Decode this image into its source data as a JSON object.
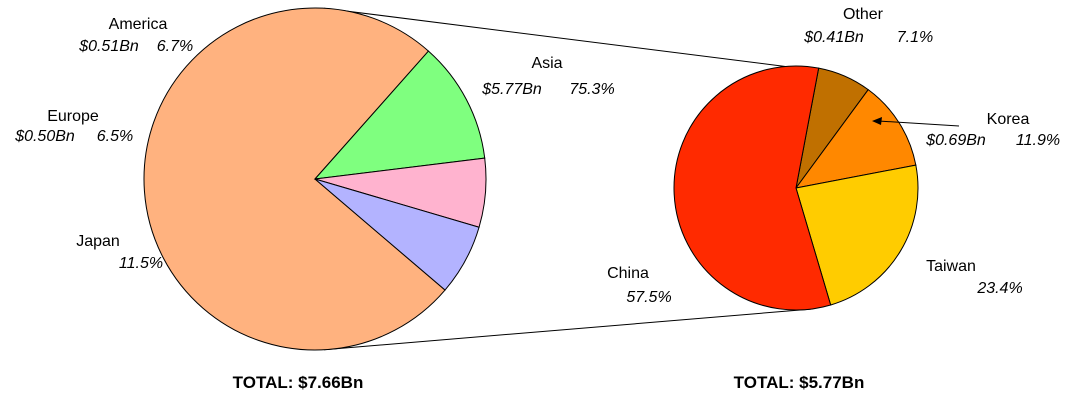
{
  "chart_data": [
    {
      "type": "pie",
      "total_label": "TOTAL: $7.66Bn",
      "slices": [
        {
          "name": "Asia",
          "value_text": "$5.77Bn",
          "pct_text": "75.3%",
          "percent": 75.3,
          "color": "#FFB27F"
        },
        {
          "name": "Japan",
          "value_text": "",
          "pct_text": "11.5%",
          "percent": 11.5,
          "color": "#7FFF7F"
        },
        {
          "name": "Europe",
          "value_text": "$0.50Bn",
          "pct_text": "6.5%",
          "percent": 6.5,
          "color": "#FFB3CF"
        },
        {
          "name": "America",
          "value_text": "$0.51Bn",
          "pct_text": "6.7%",
          "percent": 6.7,
          "color": "#B3B3FF"
        }
      ]
    },
    {
      "type": "pie",
      "total_label": "TOTAL: $5.77Bn",
      "slices": [
        {
          "name": "Other",
          "value_text": "$0.41Bn",
          "pct_text": "7.1%",
          "percent": 7.1,
          "color": "#C07000"
        },
        {
          "name": "Korea",
          "value_text": "$0.69Bn",
          "pct_text": "11.9%",
          "percent": 11.9,
          "color": "#FF8800"
        },
        {
          "name": "Taiwan",
          "value_text": "",
          "pct_text": "23.4%",
          "percent": 23.4,
          "color": "#FFCC00"
        },
        {
          "name": "China",
          "value_text": "",
          "pct_text": "57.5%",
          "percent": 57.5,
          "color": "#FF2A00"
        }
      ]
    }
  ]
}
